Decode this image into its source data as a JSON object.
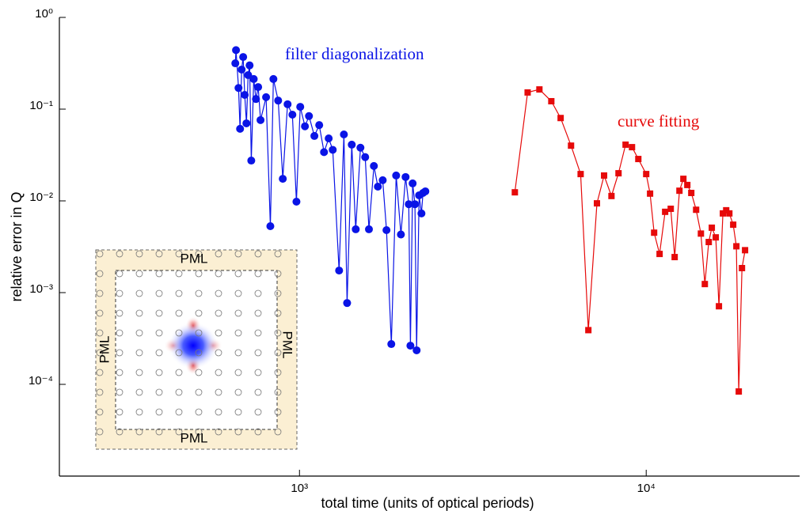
{
  "chart_data": {
    "type": "line",
    "xlabel": "total time (units of optical periods)",
    "ylabel": "relative error in Q",
    "xscale": "log",
    "yscale": "log",
    "xlim": [
      203,
      27700
    ],
    "ylim": [
      1e-05,
      1
    ],
    "xticks": [
      {
        "value": 1000,
        "label": "10³"
      },
      {
        "value": 10000,
        "label": "10⁴"
      }
    ],
    "yticks": [
      {
        "value": 1,
        "label": "10⁰"
      },
      {
        "value": 0.1,
        "label": "10⁻¹"
      },
      {
        "value": 0.01,
        "label": "10⁻²"
      },
      {
        "value": 0.001,
        "label": "10⁻³"
      },
      {
        "value": 0.0001,
        "label": "10⁻⁴"
      }
    ],
    "inset_labels": [
      "PML",
      "PML",
      "PML",
      "PML"
    ],
    "series": [
      {
        "name": "filter diagonalization",
        "color": "#0a14e6",
        "marker": "circle",
        "x": [
          653,
          656,
          667,
          674,
          681,
          688,
          695,
          703,
          711,
          718,
          726,
          738,
          749,
          760,
          772,
          801,
          824,
          841,
          868,
          895,
          924,
          954,
          980,
          1005,
          1037,
          1065,
          1104,
          1140,
          1177,
          1214,
          1247,
          1301,
          1343,
          1372,
          1415,
          1453,
          1499,
          1547,
          1586,
          1639,
          1683,
          1738,
          1782,
          1840,
          1900,
          1961,
          2023,
          2066,
          2089,
          2120,
          2153,
          2177,
          2213,
          2248,
          2271,
          2307
        ],
        "values": [
          0.316,
          0.44,
          0.17,
          0.061,
          0.27,
          0.37,
          0.143,
          0.07,
          0.235,
          0.3,
          0.0275,
          0.213,
          0.129,
          0.174,
          0.076,
          0.135,
          0.0053,
          0.213,
          0.124,
          0.0174,
          0.113,
          0.087,
          0.0098,
          0.106,
          0.065,
          0.084,
          0.051,
          0.067,
          0.034,
          0.048,
          0.036,
          0.00174,
          0.053,
          0.00077,
          0.041,
          0.0049,
          0.038,
          0.03,
          0.0049,
          0.024,
          0.0143,
          0.0168,
          0.0048,
          0.000275,
          0.0189,
          0.0043,
          0.0182,
          0.0092,
          0.000264,
          0.0155,
          0.0092,
          0.000235,
          0.0115,
          0.0073,
          0.0122,
          0.0127
        ]
      },
      {
        "name": "curve fitting",
        "color": "#e60a0a",
        "marker": "square",
        "x": [
          4180,
          4550,
          4920,
          5325,
          5665,
          6070,
          6470,
          6810,
          7210,
          7560,
          7940,
          8320,
          8720,
          9100,
          9490,
          10000,
          10260,
          10540,
          10930,
          11340,
          11770,
          12080,
          12470,
          12800,
          13140,
          13490,
          13930,
          14380,
          14760,
          15150,
          15460,
          15870,
          16210,
          16640,
          17010,
          17370,
          17820,
          18200,
          18490,
          18890,
          19280
        ],
        "values": [
          0.0124,
          0.152,
          0.164,
          0.122,
          0.08,
          0.04,
          0.0196,
          0.00039,
          0.0094,
          0.0189,
          0.0113,
          0.02,
          0.041,
          0.0385,
          0.0286,
          0.0196,
          0.012,
          0.0045,
          0.00264,
          0.0076,
          0.0082,
          0.00244,
          0.0129,
          0.0174,
          0.0149,
          0.0122,
          0.008,
          0.0044,
          0.00124,
          0.00356,
          0.0051,
          0.004,
          0.00071,
          0.0073,
          0.0079,
          0.0073,
          0.0055,
          0.0032,
          8.36e-05,
          0.00185,
          0.0029
        ]
      }
    ]
  }
}
